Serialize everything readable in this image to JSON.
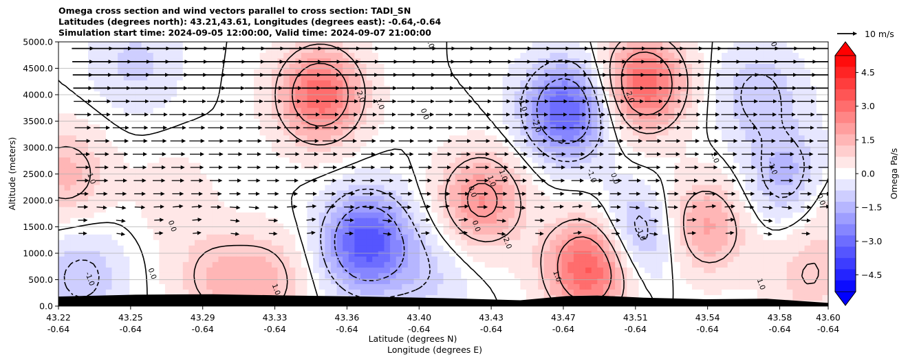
{
  "chart_data": {
    "type": "heatmap",
    "title_lines": [
      "Omega cross section and wind vectors parallel to cross section: TADI_SN",
      "Latitudes (degrees north): 43.21,43.61, Longitudes (degrees east): -0.64,-0.64",
      "Simulation start time: 2024-09-05 12:00:00, Valid time: 2024-09-07 21:00:00"
    ],
    "ylabel": "Altitude (meters)",
    "xlabel_lines": [
      "Latitude (degrees N)",
      "Longitude (degrees E)"
    ],
    "ylim": [
      0,
      5000
    ],
    "y_ticks": [
      "0.0",
      "500.0",
      "1000.0",
      "1500.0",
      "2000.0",
      "2500.0",
      "3000.0",
      "3500.0",
      "4000.0",
      "4500.0",
      "5000.0"
    ],
    "x_ticks": [
      {
        "lat": "43.22",
        "lon": "-0.64"
      },
      {
        "lat": "43.25",
        "lon": "-0.64"
      },
      {
        "lat": "43.29",
        "lon": "-0.64"
      },
      {
        "lat": "43.33",
        "lon": "-0.64"
      },
      {
        "lat": "43.36",
        "lon": "-0.64"
      },
      {
        "lat": "43.40",
        "lon": "-0.64"
      },
      {
        "lat": "43.43",
        "lon": "-0.64"
      },
      {
        "lat": "43.47",
        "lon": "-0.64"
      },
      {
        "lat": "43.51",
        "lon": "-0.64"
      },
      {
        "lat": "43.54",
        "lon": "-0.64"
      },
      {
        "lat": "43.58",
        "lon": "-0.64"
      },
      {
        "lat": "43.60",
        "lon": "-0.64"
      }
    ],
    "colorbar": {
      "label": "Omega Pa/s",
      "range": [
        -5.25,
        5.25
      ],
      "step": 0.5,
      "ticks": [
        "4.5",
        "3.0",
        "1.5",
        "0.0",
        "−1.5",
        "−3.0",
        "−4.5"
      ],
      "colors": {
        "negative": "#0000ff",
        "zero": "#ffffff",
        "positive": "#ff0000"
      }
    },
    "vector_key": {
      "label": "10 m/s"
    },
    "field_centers": [
      {
        "x": 0.34,
        "y": 4000,
        "value": 3.1
      },
      {
        "x": 0.66,
        "y": 3700,
        "value": -3.3
      },
      {
        "x": 0.76,
        "y": 4200,
        "value": 3.2
      },
      {
        "x": 0.4,
        "y": 1200,
        "value": -3.6
      },
      {
        "x": 0.55,
        "y": 2000,
        "value": 2.3
      },
      {
        "x": 0.69,
        "y": 750,
        "value": 3.6
      },
      {
        "x": 0.75,
        "y": 1300,
        "value": -1.8
      },
      {
        "x": 0.84,
        "y": 1500,
        "value": 1.9
      },
      {
        "x": 0.95,
        "y": 2400,
        "value": -1.7
      },
      {
        "x": 0.91,
        "y": 4000,
        "value": -1.2
      },
      {
        "x": 0.01,
        "y": 2500,
        "value": 1.4
      },
      {
        "x": 0.03,
        "y": 550,
        "value": -1.2
      },
      {
        "x": 0.1,
        "y": 4600,
        "value": -0.9
      },
      {
        "x": 0.2,
        "y": 550,
        "value": 1.1
      },
      {
        "x": 0.27,
        "y": 500,
        "value": 1.3
      },
      {
        "x": 0.15,
        "y": 2100,
        "value": 0.5
      },
      {
        "x": 0.975,
        "y": 550,
        "value": 1.0
      },
      {
        "x": 0.48,
        "y": 600,
        "value": -0.8
      },
      {
        "x": 0.995,
        "y": 2000,
        "value": 0.9
      }
    ],
    "contour_labels": [
      "2.0",
      "1.0",
      "0.0",
      "-1.0",
      "-2.0"
    ]
  }
}
